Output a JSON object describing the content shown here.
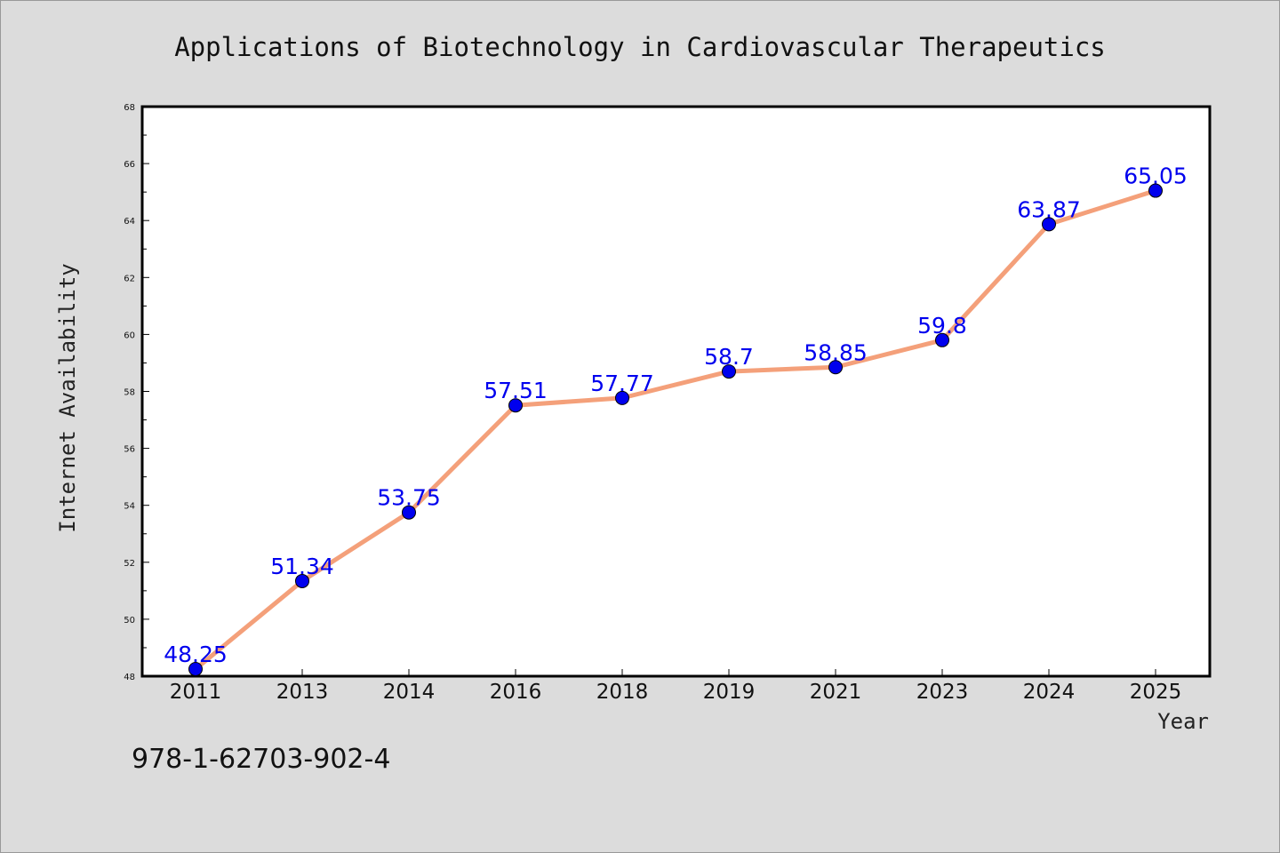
{
  "chart_data": {
    "type": "line",
    "title": "Applications of Biotechnology in Cardiovascular Therapeutics",
    "xlabel": "Year",
    "ylabel": "Internet Availability",
    "categories": [
      "2011",
      "2013",
      "2014",
      "2016",
      "2018",
      "2019",
      "2021",
      "2023",
      "2024",
      "2025"
    ],
    "values": [
      48.25,
      51.34,
      53.75,
      57.51,
      57.77,
      58.7,
      58.85,
      59.8,
      63.87,
      65.05
    ],
    "data_labels": [
      "48.25",
      "51.34",
      "53.75",
      "57.51",
      "57.77",
      "58.7",
      "58.85",
      "59.8",
      "63.87",
      "65.05"
    ],
    "ylim": [
      48,
      68
    ],
    "yticks": [
      48,
      50,
      52,
      54,
      56,
      58,
      60,
      62,
      64,
      66,
      68
    ],
    "grid": false,
    "line_color": "#f4a07a",
    "marker_color": "#0000ee",
    "label_color": "#0000ee"
  },
  "footer": {
    "isbn": "978-1-62703-902-4"
  }
}
